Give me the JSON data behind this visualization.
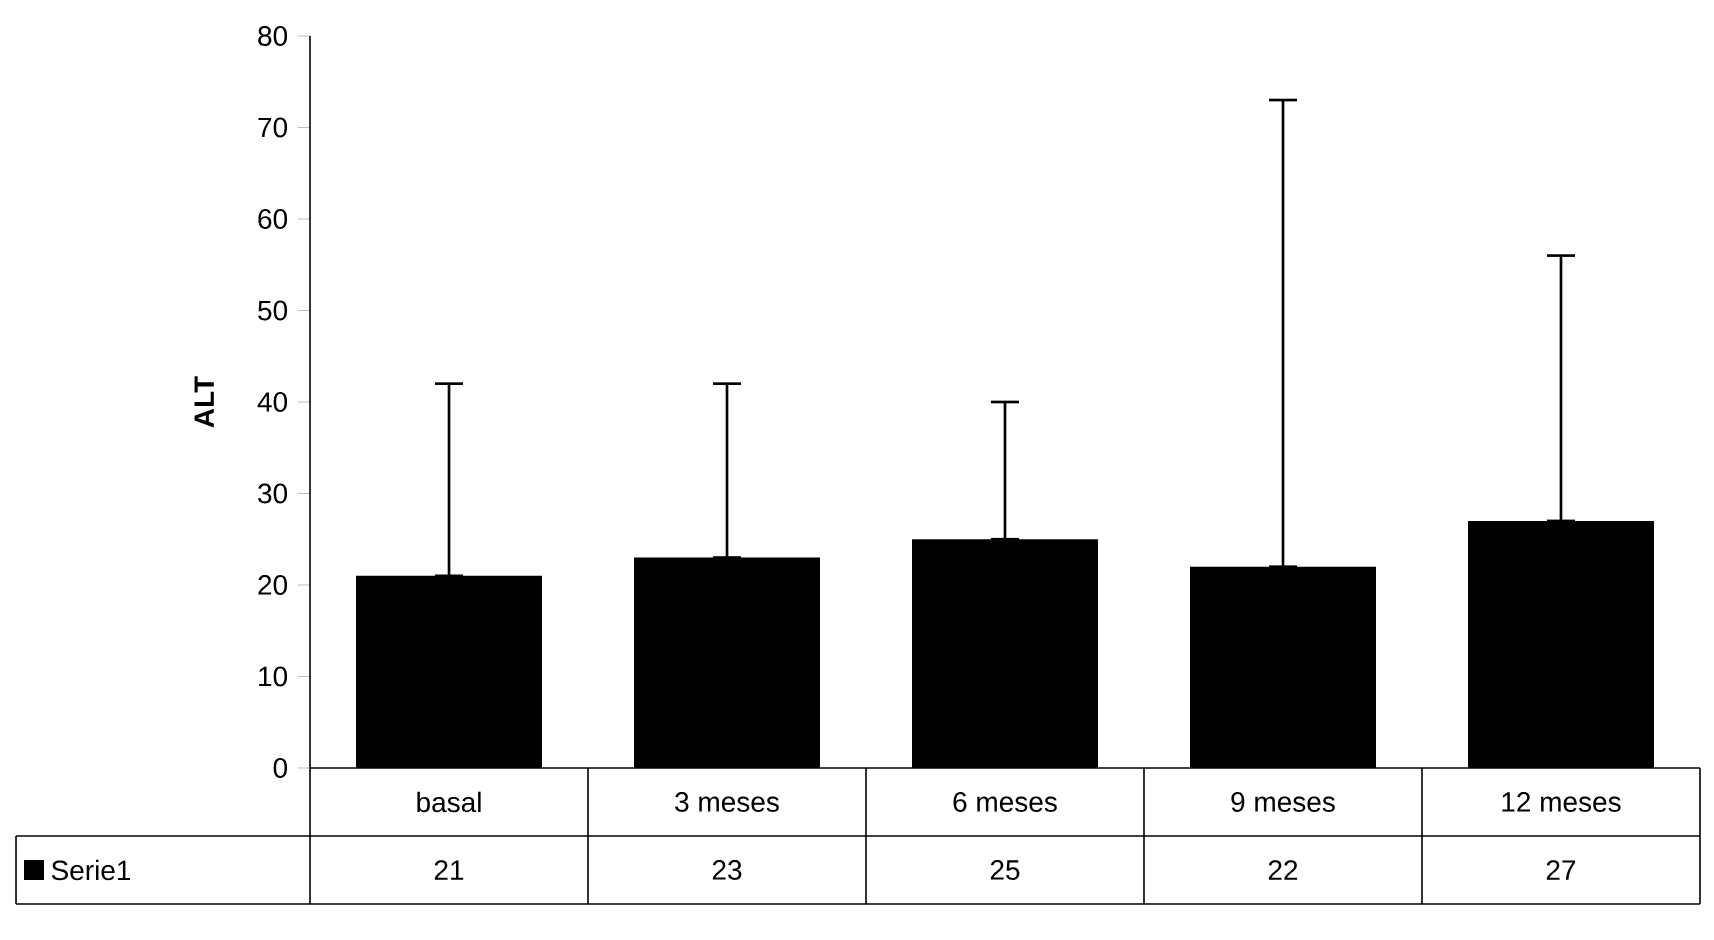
{
  "chart_data": {
    "type": "bar",
    "ylabel": "ALT",
    "categories": [
      "basal",
      "3 meses",
      "6 meses",
      "9 meses",
      "12 meses"
    ],
    "series": [
      {
        "name": "Serie1",
        "color": "#000000",
        "values": [
          21,
          23,
          25,
          22,
          27
        ],
        "errors": [
          [
            21,
            42
          ],
          [
            23,
            42
          ],
          [
            25,
            40
          ],
          [
            22,
            73
          ],
          [
            27,
            56
          ]
        ]
      }
    ],
    "ylim": [
      0,
      80
    ],
    "yticks": [
      0,
      10,
      20,
      30,
      40,
      50,
      60,
      70,
      80
    ],
    "data_labels": true
  }
}
